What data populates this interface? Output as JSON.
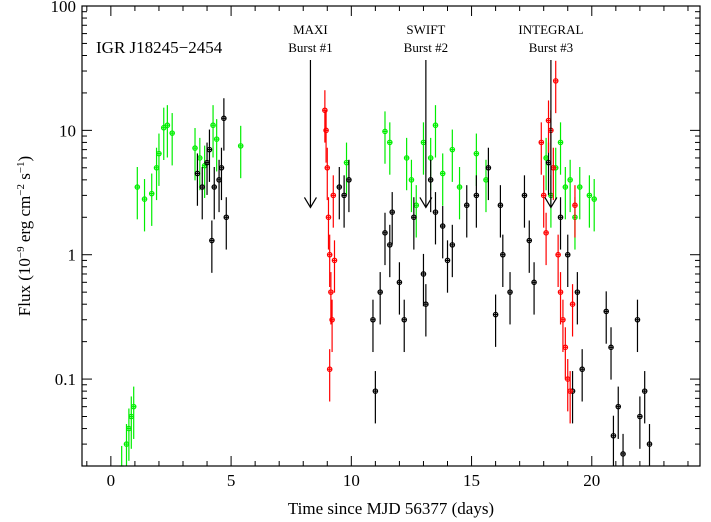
{
  "chart_data": {
    "type": "scatter",
    "source_label": "IGR J18245−2454",
    "xlabel": "Time since MJD 56377 (days)",
    "ylabel_main": "Flux (10",
    "ylabel_exp1": "−9",
    "ylabel_mid": " erg cm",
    "ylabel_exp2": "−2",
    "ylabel_s": " s",
    "ylabel_exp3": "−1",
    "ylabel_end": ")",
    "xlim": [
      -1.2,
      24.5
    ],
    "ylim": [
      0.02,
      100
    ],
    "yscale": "log",
    "grid": false,
    "x_ticks": [
      {
        "value": 0,
        "label": "0"
      },
      {
        "value": 5,
        "label": "5"
      },
      {
        "value": 10,
        "label": "10"
      },
      {
        "value": 15,
        "label": "15"
      },
      {
        "value": 20,
        "label": "20"
      }
    ],
    "y_ticks": [
      {
        "value": 0.1,
        "label": "0.1"
      },
      {
        "value": 1,
        "label": "1"
      },
      {
        "value": 10,
        "label": "10"
      },
      {
        "value": 100,
        "label": "100"
      }
    ],
    "annotations": [
      {
        "line1": "MAXI",
        "line2": "Burst #1",
        "x": 8.3,
        "y": 2.4
      },
      {
        "line1": "SWIFT",
        "line2": "Burst #2",
        "x": 13.1,
        "y": 2.4
      },
      {
        "line1": "INTEGRAL",
        "line2": "Burst #3",
        "x": 18.3,
        "y": 2.4
      }
    ],
    "series": [
      {
        "color": "#00ee00",
        "points": [
          [
            0.45,
            0.02
          ],
          [
            0.65,
            0.03
          ],
          [
            0.75,
            0.04
          ],
          [
            0.85,
            0.05
          ],
          [
            0.95,
            0.06
          ],
          [
            1.1,
            3.5
          ],
          [
            1.4,
            2.8
          ],
          [
            1.7,
            3.1
          ],
          [
            1.9,
            5.0
          ],
          [
            2.0,
            6.5
          ],
          [
            2.2,
            10.5
          ],
          [
            2.35,
            11.0
          ],
          [
            2.55,
            9.5
          ],
          [
            3.5,
            7.2
          ],
          [
            3.7,
            6.0
          ],
          [
            3.9,
            5.2
          ],
          [
            4.25,
            11.0
          ],
          [
            4.4,
            8.5
          ],
          [
            5.4,
            7.5
          ],
          [
            9.8,
            5.5
          ],
          [
            11.4,
            9.8
          ],
          [
            11.6,
            8.0
          ],
          [
            12.3,
            6.0
          ],
          [
            12.5,
            4.0
          ],
          [
            12.7,
            2.5
          ],
          [
            13.0,
            8.0
          ],
          [
            13.3,
            6.0
          ],
          [
            13.5,
            11.0
          ],
          [
            13.8,
            4.5
          ],
          [
            14.2,
            7.0
          ],
          [
            14.5,
            3.5
          ],
          [
            15.2,
            6.5
          ],
          [
            15.6,
            4.0
          ],
          [
            18.1,
            6.0
          ],
          [
            18.3,
            3.0
          ],
          [
            18.5,
            5.0
          ],
          [
            18.7,
            8.0
          ],
          [
            18.9,
            3.5
          ],
          [
            19.1,
            4.0
          ],
          [
            19.3,
            2.0
          ],
          [
            19.5,
            3.5
          ],
          [
            19.9,
            3.0
          ],
          [
            20.1,
            2.8
          ]
        ]
      },
      {
        "color": "#000000",
        "points": [
          [
            3.6,
            4.5
          ],
          [
            3.8,
            3.5
          ],
          [
            4.0,
            5.5
          ],
          [
            4.1,
            7.0
          ],
          [
            4.2,
            1.3
          ],
          [
            4.3,
            3.5
          ],
          [
            4.5,
            4.0
          ],
          [
            4.6,
            5.0
          ],
          [
            4.7,
            12.5
          ],
          [
            4.8,
            2.0
          ],
          [
            9.5,
            3.5
          ],
          [
            9.7,
            3.0
          ],
          [
            9.9,
            4.0
          ],
          [
            10.9,
            0.3
          ],
          [
            11.0,
            0.08
          ],
          [
            11.2,
            0.5
          ],
          [
            11.4,
            1.5
          ],
          [
            11.6,
            1.2
          ],
          [
            11.7,
            2.2
          ],
          [
            12.0,
            0.6
          ],
          [
            12.2,
            0.3
          ],
          [
            12.6,
            2.0
          ],
          [
            13.0,
            0.7
          ],
          [
            13.1,
            0.4
          ],
          [
            13.3,
            4.0
          ],
          [
            13.5,
            2.2
          ],
          [
            13.8,
            1.7
          ],
          [
            14.0,
            0.9
          ],
          [
            14.2,
            1.2
          ],
          [
            14.8,
            2.5
          ],
          [
            15.2,
            3.0
          ],
          [
            15.7,
            5.0
          ],
          [
            16.0,
            0.33
          ],
          [
            16.2,
            2.5
          ],
          [
            16.3,
            1.0
          ],
          [
            16.6,
            0.5
          ],
          [
            17.2,
            3.0
          ],
          [
            17.4,
            1.3
          ],
          [
            17.6,
            0.6
          ],
          [
            18.2,
            5.5
          ],
          [
            18.7,
            2.0
          ],
          [
            19.0,
            1.0
          ],
          [
            19.2,
            0.08
          ],
          [
            19.4,
            0.5
          ],
          [
            19.6,
            0.12
          ],
          [
            20.6,
            0.35
          ],
          [
            20.8,
            0.18
          ],
          [
            20.9,
            0.035
          ],
          [
            21.1,
            0.06
          ],
          [
            21.3,
            0.025
          ],
          [
            21.9,
            0.3
          ],
          [
            22.0,
            0.05
          ],
          [
            22.2,
            0.08
          ],
          [
            22.4,
            0.03
          ]
        ]
      },
      {
        "color": "#ff0000",
        "points": [
          [
            8.9,
            14.5
          ],
          [
            8.95,
            10.0
          ],
          [
            9.0,
            5.0
          ],
          [
            9.05,
            2.0
          ],
          [
            9.1,
            1.0
          ],
          [
            9.15,
            0.5
          ],
          [
            9.2,
            0.3
          ],
          [
            9.25,
            3.0
          ],
          [
            9.3,
            0.9
          ],
          [
            9.1,
            0.12
          ],
          [
            17.9,
            8.0
          ],
          [
            18.0,
            3.0
          ],
          [
            18.1,
            1.5
          ],
          [
            18.2,
            12.0
          ],
          [
            18.3,
            10.0
          ],
          [
            18.4,
            5.0
          ],
          [
            18.5,
            25.0
          ],
          [
            18.6,
            1.0
          ],
          [
            18.7,
            0.5
          ],
          [
            18.8,
            0.3
          ],
          [
            18.9,
            0.18
          ],
          [
            19.0,
            0.1
          ],
          [
            19.1,
            0.08
          ],
          [
            19.2,
            0.4
          ],
          [
            19.3,
            2.5
          ]
        ]
      }
    ]
  }
}
